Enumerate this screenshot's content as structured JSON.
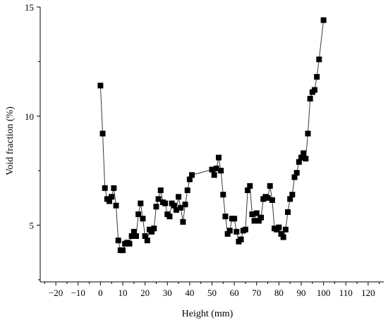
{
  "chart_data": {
    "type": "scatter",
    "title": "",
    "xlabel": "Height (mm)",
    "ylabel": "Void fraction (%)",
    "xlim": [
      -27,
      127
    ],
    "ylim": [
      2.4,
      15
    ],
    "xticks": [
      -20,
      -10,
      0,
      10,
      20,
      30,
      40,
      50,
      60,
      70,
      80,
      90,
      100,
      110,
      120
    ],
    "yticks": [
      5,
      10,
      15
    ],
    "grid": false,
    "legend": "none",
    "marker": "square",
    "color": "#000000",
    "series": [
      {
        "points": [
          [
            0,
            11.4
          ],
          [
            1,
            9.2
          ],
          [
            2,
            6.7
          ],
          [
            3,
            6.2
          ],
          [
            4,
            6.1
          ],
          [
            5,
            6.3
          ],
          [
            6,
            6.7
          ],
          [
            7,
            5.9
          ],
          [
            8,
            4.3
          ],
          [
            9,
            3.85
          ],
          [
            10,
            3.85
          ],
          [
            11,
            4.15
          ],
          [
            12,
            4.2
          ],
          [
            13,
            4.15
          ],
          [
            14,
            4.5
          ],
          [
            15,
            4.7
          ],
          [
            16,
            4.5
          ],
          [
            17,
            5.5
          ],
          [
            18,
            6.0
          ],
          [
            19,
            5.3
          ],
          [
            20,
            4.5
          ],
          [
            21,
            4.3
          ],
          [
            22,
            4.8
          ],
          [
            23,
            4.7
          ],
          [
            24,
            4.85
          ],
          [
            25,
            5.85
          ],
          [
            26,
            6.2
          ],
          [
            27,
            6.6
          ],
          [
            28,
            6.05
          ],
          [
            29,
            6.0
          ],
          [
            30,
            5.5
          ],
          [
            31,
            5.4
          ],
          [
            32,
            6.0
          ],
          [
            33,
            5.9
          ],
          [
            34,
            5.7
          ],
          [
            35,
            6.3
          ],
          [
            36,
            5.8
          ],
          [
            37,
            5.15
          ],
          [
            38,
            5.95
          ],
          [
            39,
            6.6
          ],
          [
            40,
            7.1
          ],
          [
            41,
            7.3
          ],
          [
            50,
            7.55
          ],
          [
            51,
            7.3
          ],
          [
            52,
            7.6
          ],
          [
            53,
            8.1
          ],
          [
            54,
            7.5
          ],
          [
            55,
            6.4
          ],
          [
            56,
            5.4
          ],
          [
            57,
            4.6
          ],
          [
            58,
            4.75
          ],
          [
            59,
            5.3
          ],
          [
            60,
            5.3
          ],
          [
            61,
            4.7
          ],
          [
            62,
            4.25
          ],
          [
            63,
            4.35
          ],
          [
            64,
            4.75
          ],
          [
            65,
            4.8
          ],
          [
            66,
            6.6
          ],
          [
            67,
            6.8
          ],
          [
            68,
            5.5
          ],
          [
            69,
            5.2
          ],
          [
            70,
            5.55
          ],
          [
            71,
            5.2
          ],
          [
            72,
            5.35
          ],
          [
            73,
            6.2
          ],
          [
            74,
            6.3
          ],
          [
            75,
            6.25
          ],
          [
            76,
            6.8
          ],
          [
            77,
            6.15
          ],
          [
            78,
            4.85
          ],
          [
            79,
            4.8
          ],
          [
            80,
            4.9
          ],
          [
            81,
            4.6
          ],
          [
            82,
            4.45
          ],
          [
            83,
            4.8
          ],
          [
            84,
            5.6
          ],
          [
            85,
            6.2
          ],
          [
            86,
            6.4
          ],
          [
            87,
            7.2
          ],
          [
            88,
            7.4
          ],
          [
            89,
            7.9
          ],
          [
            90,
            8.1
          ],
          [
            91,
            8.3
          ],
          [
            92,
            8.05
          ],
          [
            93,
            9.2
          ],
          [
            94,
            10.8
          ],
          [
            95,
            11.1
          ],
          [
            96,
            11.2
          ],
          [
            97,
            11.8
          ],
          [
            98,
            12.6
          ],
          [
            100,
            14.4
          ]
        ]
      }
    ]
  }
}
